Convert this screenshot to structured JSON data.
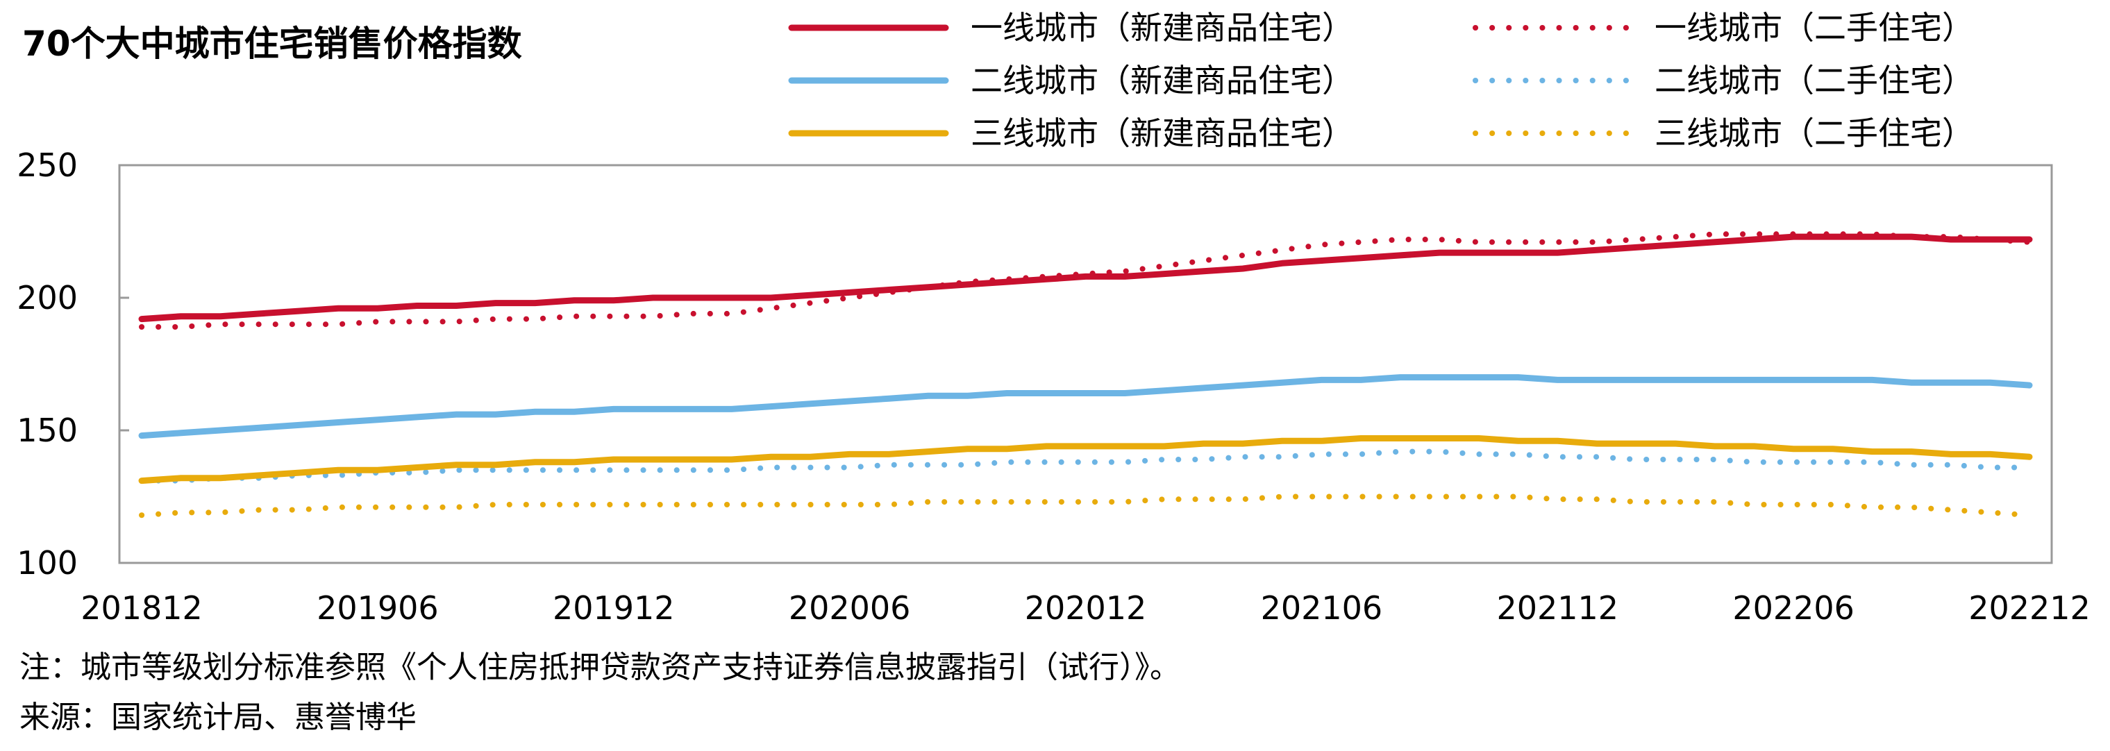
{
  "chart_data": {
    "type": "line",
    "title": "70个大中城市住宅销售价格指数",
    "xlabel": "",
    "ylabel": "",
    "ylim": [
      100,
      250
    ],
    "y_ticks": [
      "100",
      "150",
      "200",
      "250"
    ],
    "x_tick_labels": [
      "201812",
      "201906",
      "201912",
      "202006",
      "202012",
      "202106",
      "202112",
      "202206",
      "202212"
    ],
    "grid": false,
    "legend_position": "top-right",
    "x": [
      "201812",
      "201901",
      "201902",
      "201903",
      "201904",
      "201905",
      "201906",
      "201907",
      "201908",
      "201909",
      "201910",
      "201911",
      "201912",
      "202001",
      "202002",
      "202003",
      "202004",
      "202005",
      "202006",
      "202007",
      "202008",
      "202009",
      "202010",
      "202011",
      "202012",
      "202101",
      "202102",
      "202103",
      "202104",
      "202105",
      "202106",
      "202107",
      "202108",
      "202109",
      "202110",
      "202111",
      "202112",
      "202201",
      "202202",
      "202203",
      "202204",
      "202205",
      "202206",
      "202207",
      "202208",
      "202209",
      "202210",
      "202211",
      "202212"
    ],
    "series": [
      {
        "name": "一线城市（新建商品住宅）",
        "color": "#c8102e",
        "style": "solid",
        "values": [
          192,
          193,
          193,
          194,
          195,
          196,
          196,
          197,
          197,
          198,
          198,
          199,
          199,
          200,
          200,
          200,
          200,
          201,
          202,
          203,
          204,
          205,
          206,
          207,
          208,
          208,
          209,
          210,
          211,
          213,
          214,
          215,
          216,
          217,
          217,
          217,
          217,
          218,
          219,
          220,
          221,
          222,
          223,
          223,
          223,
          223,
          222,
          222,
          222
        ]
      },
      {
        "name": "一线城市（二手住宅）",
        "color": "#c8102e",
        "style": "dotted",
        "values": [
          189,
          189,
          190,
          190,
          190,
          190,
          191,
          191,
          191,
          192,
          192,
          193,
          193,
          193,
          194,
          194,
          196,
          198,
          200,
          202,
          204,
          206,
          207,
          208,
          209,
          210,
          212,
          214,
          216,
          218,
          220,
          221,
          222,
          222,
          221,
          221,
          221,
          221,
          222,
          223,
          224,
          224,
          224,
          224,
          224,
          223,
          223,
          222,
          221
        ]
      },
      {
        "name": "二线城市（新建商品住宅）",
        "color": "#6cb4e4",
        "style": "solid",
        "values": [
          148,
          149,
          150,
          151,
          152,
          153,
          154,
          155,
          156,
          156,
          157,
          157,
          158,
          158,
          158,
          158,
          159,
          160,
          161,
          162,
          163,
          163,
          164,
          164,
          164,
          164,
          165,
          166,
          167,
          168,
          169,
          169,
          170,
          170,
          170,
          170,
          169,
          169,
          169,
          169,
          169,
          169,
          169,
          169,
          169,
          168,
          168,
          168,
          167
        ]
      },
      {
        "name": "二线城市（二手住宅）",
        "color": "#6cb4e4",
        "style": "dotted",
        "values": [
          131,
          131,
          132,
          132,
          133,
          133,
          134,
          134,
          135,
          135,
          135,
          135,
          135,
          135,
          135,
          135,
          136,
          136,
          136,
          137,
          137,
          137,
          138,
          138,
          138,
          138,
          139,
          139,
          140,
          140,
          141,
          141,
          142,
          142,
          141,
          141,
          140,
          140,
          139,
          139,
          139,
          138,
          138,
          138,
          138,
          137,
          137,
          136,
          136
        ]
      },
      {
        "name": "三线城市（新建商品住宅）",
        "color": "#e8ab0c",
        "style": "solid",
        "values": [
          131,
          132,
          132,
          133,
          134,
          135,
          135,
          136,
          137,
          137,
          138,
          138,
          139,
          139,
          139,
          139,
          140,
          140,
          141,
          141,
          142,
          143,
          143,
          144,
          144,
          144,
          144,
          145,
          145,
          146,
          146,
          147,
          147,
          147,
          147,
          146,
          146,
          145,
          145,
          145,
          144,
          144,
          143,
          143,
          142,
          142,
          141,
          141,
          140
        ]
      },
      {
        "name": "三线城市（二手住宅）",
        "color": "#e8ab0c",
        "style": "dotted",
        "values": [
          118,
          119,
          119,
          120,
          120,
          121,
          121,
          121,
          121,
          122,
          122,
          122,
          122,
          122,
          122,
          122,
          122,
          122,
          122,
          122,
          123,
          123,
          123,
          123,
          123,
          123,
          124,
          124,
          124,
          125,
          125,
          125,
          125,
          125,
          125,
          125,
          124,
          124,
          123,
          123,
          123,
          122,
          122,
          122,
          121,
          121,
          120,
          119,
          118
        ]
      }
    ]
  },
  "footnote": {
    "note": "注：城市等级划分标准参照《个人住房抵押贷款资产支持证券信息披露指引（试行）》。",
    "source": "来源：国家统计局、惠誉博华"
  }
}
